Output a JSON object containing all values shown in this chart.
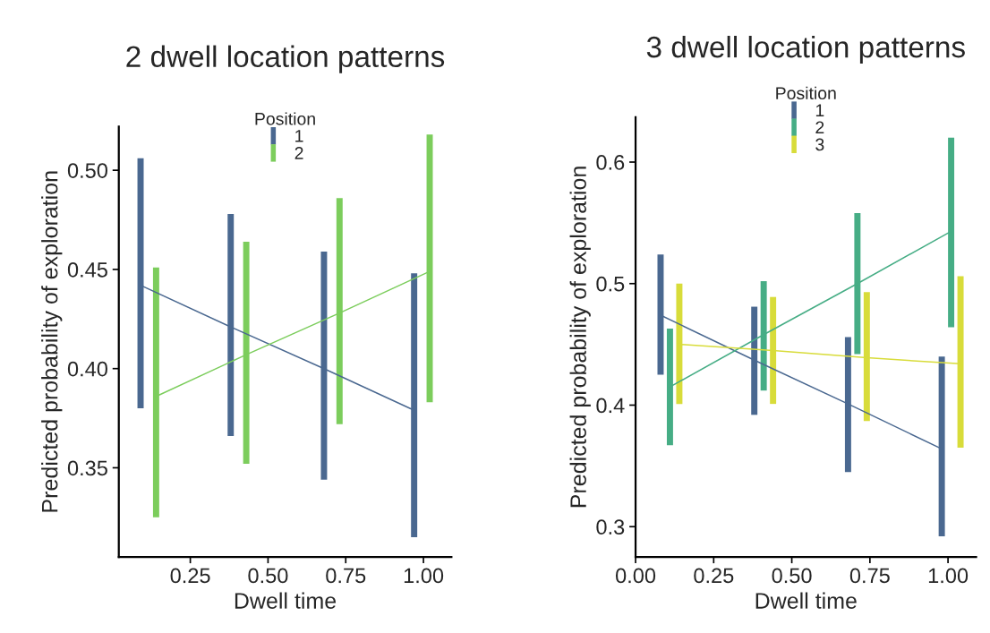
{
  "chart_data": [
    {
      "type": "line",
      "title": "2 dwell location patterns",
      "xlabel": "Dwell time",
      "ylabel": "Predicted probability of exploration",
      "legend_title": "Position",
      "legend": "top",
      "marker": "none",
      "line_style": "solid",
      "grid": false,
      "xlim": [
        0.02,
        1.09
      ],
      "ylim": [
        0.305,
        0.522
      ],
      "xticks": [
        {
          "value": 0.25,
          "label": "0.25"
        },
        {
          "value": 0.5,
          "label": "0.50"
        },
        {
          "value": 0.75,
          "label": "0.75"
        },
        {
          "value": 1.0,
          "label": "1.00"
        }
      ],
      "yticks": [
        {
          "value": 0.35,
          "label": "0.35"
        },
        {
          "value": 0.4,
          "label": "0.40"
        },
        {
          "value": 0.45,
          "label": "0.45"
        },
        {
          "value": 0.5,
          "label": "0.50"
        }
      ],
      "series": [
        {
          "name": "1",
          "color": "#4a6890",
          "x": [
            0.09,
            0.38,
            0.68,
            0.97
          ],
          "values": [
            0.442,
            0.421,
            0.4,
            0.379
          ],
          "errors": [
            [
              0.38,
              0.506
            ],
            [
              0.366,
              0.478
            ],
            [
              0.344,
              0.459
            ],
            [
              0.315,
              0.448
            ]
          ]
        },
        {
          "name": "2",
          "color": "#7ccd5c",
          "x": [
            0.14,
            0.43,
            0.73,
            1.02
          ],
          "values": [
            0.386,
            0.407,
            0.428,
            0.449
          ],
          "errors": [
            [
              0.325,
              0.451
            ],
            [
              0.352,
              0.464
            ],
            [
              0.372,
              0.486
            ],
            [
              0.383,
              0.518
            ]
          ]
        }
      ]
    },
    {
      "type": "line",
      "title": "3 dwell location patterns",
      "xlabel": "Dwell time",
      "ylabel": "Predicted probability of exploration",
      "legend_title": "Position",
      "legend": "top",
      "marker": "none",
      "line_style": "solid",
      "grid": false,
      "xlim": [
        0.0,
        1.09
      ],
      "ylim": [
        0.275,
        0.637
      ],
      "xticks": [
        {
          "value": 0.0,
          "label": "0.00"
        },
        {
          "value": 0.25,
          "label": "0.25"
        },
        {
          "value": 0.5,
          "label": "0.50"
        },
        {
          "value": 0.75,
          "label": "0.75"
        },
        {
          "value": 1.0,
          "label": "1.00"
        }
      ],
      "yticks": [
        0.3,
        0.4,
        0.5,
        0.6
      ],
      "series": [
        {
          "name": "1",
          "color": "#4a6890",
          "x": [
            0.08,
            0.38,
            0.68,
            0.98
          ],
          "values": [
            0.474,
            0.437,
            0.401,
            0.364
          ],
          "errors": [
            [
              0.425,
              0.524
            ],
            [
              0.392,
              0.481
            ],
            [
              0.345,
              0.456
            ],
            [
              0.292,
              0.44
            ]
          ]
        },
        {
          "name": "2",
          "color": "#46ad85",
          "x": [
            0.11,
            0.41,
            0.71,
            1.01
          ],
          "values": [
            0.415,
            0.458,
            0.5,
            0.543
          ],
          "errors": [
            [
              0.367,
              0.463
            ],
            [
              0.412,
              0.502
            ],
            [
              0.442,
              0.558
            ],
            [
              0.464,
              0.62
            ]
          ]
        },
        {
          "name": "3",
          "color": "#d8dc3a",
          "x": [
            0.14,
            0.44,
            0.74,
            1.04
          ],
          "values": [
            0.45,
            0.445,
            0.439,
            0.434
          ],
          "errors": [
            [
              0.401,
              0.5
            ],
            [
              0.401,
              0.489
            ],
            [
              0.387,
              0.493
            ],
            [
              0.365,
              0.506
            ]
          ]
        }
      ]
    }
  ]
}
